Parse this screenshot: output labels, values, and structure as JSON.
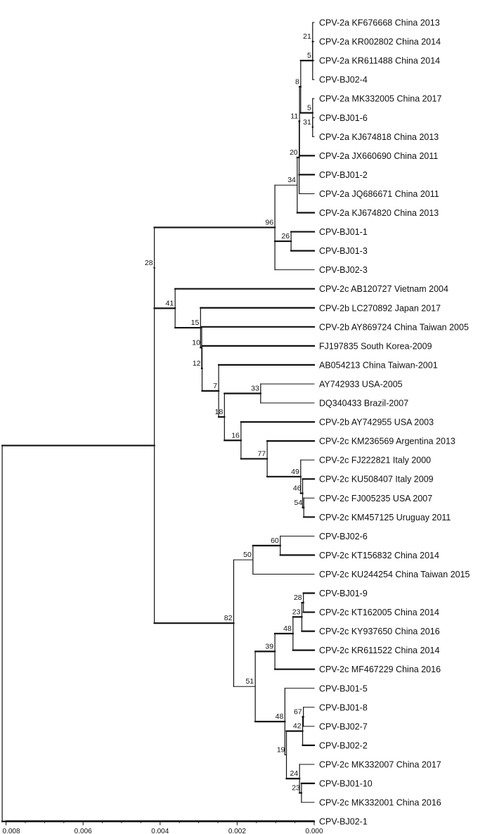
{
  "tree": {
    "tips": [
      {
        "id": "t0",
        "label": "CPV-2a KF676668 China 2013"
      },
      {
        "id": "t1",
        "label": "CPV-2a KR002802 China 2014"
      },
      {
        "id": "t2",
        "label": "CPV-2a KR611488 China 2014"
      },
      {
        "id": "t3",
        "label": "CPV-BJ02-4"
      },
      {
        "id": "t4",
        "label": "CPV-2a MK332005 China 2017"
      },
      {
        "id": "t5",
        "label": "CPV-BJ01-6"
      },
      {
        "id": "t6",
        "label": "CPV-2a KJ674818 China 2013"
      },
      {
        "id": "t7",
        "label": "CPV-2a JX660690 China 2011"
      },
      {
        "id": "t8",
        "label": "CPV-BJ01-2"
      },
      {
        "id": "t9",
        "label": "CPV-2a JQ686671 China 2011"
      },
      {
        "id": "t10",
        "label": "CPV-2a KJ674820 China 2013"
      },
      {
        "id": "t11",
        "label": "CPV-BJ01-1"
      },
      {
        "id": "t12",
        "label": "CPV-BJ01-3"
      },
      {
        "id": "t13",
        "label": "CPV-BJ02-3"
      },
      {
        "id": "t14",
        "label": "CPV-2c AB120727 Vietnam 2004"
      },
      {
        "id": "t15",
        "label": "CPV-2b LC270892 Japan 2017"
      },
      {
        "id": "t16",
        "label": "CPV-2b AY869724 China Taiwan 2005"
      },
      {
        "id": "t17",
        "label": "FJ197835 South Korea-2009"
      },
      {
        "id": "t18",
        "label": "AB054213 China Taiwan-2001"
      },
      {
        "id": "t19",
        "label": "AY742933 USA-2005"
      },
      {
        "id": "t20",
        "label": "DQ340433 Brazil-2007"
      },
      {
        "id": "t21",
        "label": "CPV-2b AY742955 USA 2003"
      },
      {
        "id": "t22",
        "label": "CPV-2c KM236569 Argentina 2013"
      },
      {
        "id": "t23",
        "label": "CPV-2c FJ222821 Italy 2000"
      },
      {
        "id": "t24",
        "label": "CPV-2c KU508407 Italy 2009"
      },
      {
        "id": "t25",
        "label": "CPV-2c FJ005235 USA 2007"
      },
      {
        "id": "t26",
        "label": "CPV-2c KM457125 Uruguay 2011"
      },
      {
        "id": "t27",
        "label": "CPV-BJ02-6"
      },
      {
        "id": "t28",
        "label": "CPV-2c KT156832 China 2014"
      },
      {
        "id": "t29",
        "label": "CPV-2c KU244254 China Taiwan 2015"
      },
      {
        "id": "t30",
        "label": "CPV-BJ01-9"
      },
      {
        "id": "t31",
        "label": "CPV-2c KT162005 China 2014"
      },
      {
        "id": "t32",
        "label": "CPV-2c KY937650 China 2016"
      },
      {
        "id": "t33",
        "label": "CPV-2c KR611522 China 2014"
      },
      {
        "id": "t34",
        "label": "CPV-2c MF467229 China 2016"
      },
      {
        "id": "t35",
        "label": "CPV-BJ01-5"
      },
      {
        "id": "t36",
        "label": "CPV-BJ01-8"
      },
      {
        "id": "t37",
        "label": "CPV-BJ02-7"
      },
      {
        "id": "t38",
        "label": "CPV-BJ02-2"
      },
      {
        "id": "t39",
        "label": "CPV-2c MK332007 China 2017"
      },
      {
        "id": "t40",
        "label": "CPV-BJ01-10"
      },
      {
        "id": "t41",
        "label": "CPV-2c MK332001 China 2016"
      },
      {
        "id": "t42",
        "label": "CPV-BJ02-1"
      }
    ],
    "nodes": [
      {
        "id": "n21a",
        "support": "21",
        "children": [
          "t0",
          "t1",
          "t2"
        ]
      },
      {
        "id": "n5a",
        "support": "5",
        "children": [
          "n21a",
          "t3"
        ]
      },
      {
        "id": "n31",
        "support": "31",
        "children": [
          "t5",
          "t6"
        ]
      },
      {
        "id": "n5b",
        "support": "5",
        "children": [
          "t4",
          "n31"
        ]
      },
      {
        "id": "n8",
        "support": "8",
        "children": [
          "n5a",
          "n5b"
        ]
      },
      {
        "id": "n11",
        "support": "11",
        "children": [
          "n8",
          "t7"
        ]
      },
      {
        "id": "n20",
        "support": "20",
        "children": [
          "n11",
          "t8",
          "t9"
        ]
      },
      {
        "id": "n34",
        "support": "34",
        "children": [
          "n20",
          "t10"
        ]
      },
      {
        "id": "n26",
        "support": "26",
        "children": [
          "t11",
          "t12"
        ]
      },
      {
        "id": "n96",
        "support": "96",
        "children": [
          "n34",
          "n26",
          "t13"
        ]
      },
      {
        "id": "n33",
        "support": "33",
        "children": [
          "t19",
          "t20"
        ]
      },
      {
        "id": "n54",
        "support": "54",
        "children": [
          "t25",
          "t26"
        ]
      },
      {
        "id": "n46",
        "support": "46",
        "children": [
          "t24",
          "n54"
        ]
      },
      {
        "id": "n49",
        "support": "49",
        "children": [
          "t23",
          "n46"
        ]
      },
      {
        "id": "n77",
        "support": "77",
        "children": [
          "t22",
          "n49"
        ]
      },
      {
        "id": "n16",
        "support": "16",
        "children": [
          "t21",
          "n77"
        ]
      },
      {
        "id": "n18",
        "support": "18",
        "children": [
          "n33",
          "n16"
        ]
      },
      {
        "id": "n7",
        "support": "7",
        "children": [
          "t18",
          "n18"
        ]
      },
      {
        "id": "n12",
        "support": "12",
        "children": [
          "t17",
          "n7"
        ]
      },
      {
        "id": "n10",
        "support": "10",
        "children": [
          "t16",
          "n12"
        ]
      },
      {
        "id": "n15",
        "support": "15",
        "children": [
          "t15",
          "n10"
        ]
      },
      {
        "id": "n41",
        "support": "41",
        "children": [
          "t14",
          "n15"
        ]
      },
      {
        "id": "n28a",
        "support": "28",
        "children": [
          "n96",
          "n41"
        ]
      },
      {
        "id": "n60",
        "support": "60",
        "children": [
          "t27",
          "t28"
        ]
      },
      {
        "id": "n50",
        "support": "50",
        "children": [
          "n60",
          "t29"
        ]
      },
      {
        "id": "n28b",
        "support": "28",
        "children": [
          "t30",
          "t31"
        ]
      },
      {
        "id": "n23a",
        "support": "23",
        "children": [
          "n28b",
          "t32"
        ]
      },
      {
        "id": "n48a",
        "support": "48",
        "children": [
          "n23a",
          "t33"
        ]
      },
      {
        "id": "n39",
        "support": "39",
        "children": [
          "n48a",
          "t34"
        ]
      },
      {
        "id": "n67",
        "support": "67",
        "children": [
          "t36",
          "t37"
        ]
      },
      {
        "id": "n42",
        "support": "42",
        "children": [
          "n67",
          "t38"
        ]
      },
      {
        "id": "n23b",
        "support": "23",
        "children": [
          "t40",
          "t41"
        ]
      },
      {
        "id": "n24",
        "support": "24",
        "children": [
          "t39",
          "n23b"
        ]
      },
      {
        "id": "n19",
        "support": "19",
        "children": [
          "n42",
          "n24"
        ]
      },
      {
        "id": "n48b",
        "support": "48",
        "children": [
          "t35",
          "n19"
        ]
      },
      {
        "id": "n51",
        "support": "51",
        "children": [
          "n39",
          "n48b"
        ]
      },
      {
        "id": "n82",
        "support": "82",
        "children": [
          "n50",
          "n51"
        ]
      },
      {
        "id": "nIn",
        "support": "",
        "children": [
          "n28a",
          "n82"
        ]
      },
      {
        "id": "root",
        "support": "",
        "children": [
          "nIn",
          "t42"
        ]
      }
    ],
    "node_distance": {
      "n21a": 4e-05,
      "n5a": 4e-05,
      "n31": 4e-05,
      "n5b": 4e-05,
      "n8": 0.00035,
      "n11": 0.00038,
      "n20": 0.00039,
      "n34": 0.00044,
      "n26": 0.0006,
      "n96": 0.00102,
      "n33": 0.00139,
      "n54": 0.00027,
      "n46": 0.0003,
      "n49": 0.00035,
      "n77": 0.00122,
      "n16": 0.0019,
      "n18": 0.00233,
      "n7": 0.00248,
      "n12": 0.00291,
      "n10": 0.00292,
      "n15": 0.00295,
      "n41": 0.00361,
      "n28a": 0.00415,
      "n60": 0.00088,
      "n50": 0.00159,
      "n28b": 0.00028,
      "n23a": 0.00032,
      "n48a": 0.00055,
      "n39": 0.00102,
      "n67": 0.00028,
      "n42": 0.0003,
      "n23b": 0.00033,
      "n24": 0.00038,
      "n19": 0.00072,
      "n48b": 0.00076,
      "n51": 0.00153,
      "n82": 0.00209,
      "nIn": 0.00415,
      "root": 0.0081
    },
    "thin_branches": [
      "t0",
      "t1",
      "t2",
      "t3",
      "t4",
      "t5",
      "t6",
      "t9",
      "t13",
      "t19",
      "t20",
      "t23",
      "t25",
      "t27",
      "t29",
      "t35",
      "t36",
      "t37",
      "t39",
      "t41",
      "n34",
      "n29",
      "n50",
      "n51",
      "n19"
    ]
  },
  "axis": {
    "min": 0.008,
    "max": 0.0,
    "ticks": [
      {
        "value": 0.008,
        "label": "0.008"
      },
      {
        "value": 0.006,
        "label": "0.006"
      },
      {
        "value": 0.004,
        "label": "0.004"
      },
      {
        "value": 0.002,
        "label": "0.002"
      },
      {
        "value": 0.0,
        "label": "0.000"
      }
    ]
  }
}
